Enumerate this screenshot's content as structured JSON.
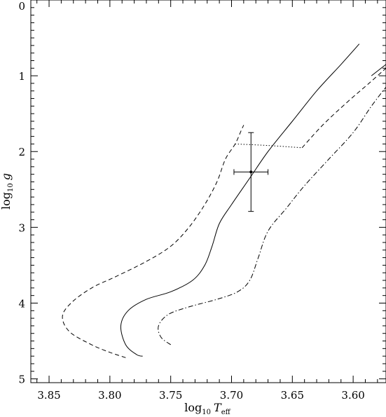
{
  "chart_data": {
    "type": "line",
    "title": "",
    "xlabel": {
      "base": "log",
      "sub": "10",
      "var": "T",
      "var_sub": "eff"
    },
    "ylabel": {
      "base": "log",
      "sub": "10",
      "var": "g"
    },
    "xlim": [
      3.865,
      3.573
    ],
    "ylim": [
      0,
      5.05
    ],
    "x_reversed": true,
    "y_reversed": true,
    "grid": false,
    "xticks": [
      3.85,
      3.8,
      3.75,
      3.7,
      3.65,
      3.6
    ],
    "xtick_labels": [
      "3.85",
      "3.80",
      "3.75",
      "3.70",
      "3.65",
      "3.60"
    ],
    "yticks": [
      0,
      1,
      2,
      3,
      4,
      5
    ],
    "ytick_labels": [
      "0",
      "1",
      "2",
      "3",
      "4",
      "5"
    ],
    "series": [
      {
        "style": "dashed",
        "x": [
          3.787,
          3.8,
          3.815,
          3.833,
          3.839,
          3.832,
          3.815,
          3.795,
          3.77,
          3.75,
          3.735,
          3.722,
          3.712,
          3.705,
          3.697,
          3.692,
          3.69
        ],
        "y": [
          4.72,
          4.65,
          4.55,
          4.38,
          4.18,
          4.0,
          3.8,
          3.65,
          3.45,
          3.25,
          3.0,
          2.7,
          2.4,
          2.1,
          1.9,
          1.72,
          1.65
        ]
      },
      {
        "style": "dotted",
        "x": [
          3.697,
          3.67,
          3.642
        ],
        "y": [
          1.9,
          1.92,
          1.95
        ]
      },
      {
        "style": "dashed",
        "x": [
          3.642,
          3.625,
          3.605,
          3.587,
          3.573
        ],
        "y": [
          1.95,
          1.65,
          1.35,
          1.1,
          0.9
        ]
      },
      {
        "style": "solid",
        "x": [
          3.773,
          3.778,
          3.787,
          3.791,
          3.785,
          3.77,
          3.75,
          3.732,
          3.722,
          3.716,
          3.71,
          3.7,
          3.685,
          3.67,
          3.65,
          3.63,
          3.61,
          3.595
        ],
        "y": [
          4.7,
          4.68,
          4.55,
          4.3,
          4.1,
          3.95,
          3.85,
          3.7,
          3.5,
          3.25,
          2.95,
          2.7,
          2.35,
          2.0,
          1.6,
          1.2,
          0.85,
          0.58
        ]
      },
      {
        "style": "solid",
        "x": [
          3.585,
          3.573
        ],
        "y": [
          1.0,
          0.85
        ]
      },
      {
        "style": "dashdot",
        "x": [
          3.75,
          3.758,
          3.76,
          3.752,
          3.735,
          3.712,
          3.695,
          3.685,
          3.678,
          3.67,
          3.655,
          3.64,
          3.62,
          3.6,
          3.585,
          3.573
        ],
        "y": [
          4.55,
          4.45,
          4.3,
          4.15,
          4.05,
          3.95,
          3.85,
          3.7,
          3.4,
          3.05,
          2.75,
          2.45,
          2.1,
          1.75,
          1.4,
          1.15
        ]
      }
    ],
    "error_point": {
      "x": 3.684,
      "y": 2.27,
      "x_err": 0.014,
      "y_err": 0.52
    }
  }
}
